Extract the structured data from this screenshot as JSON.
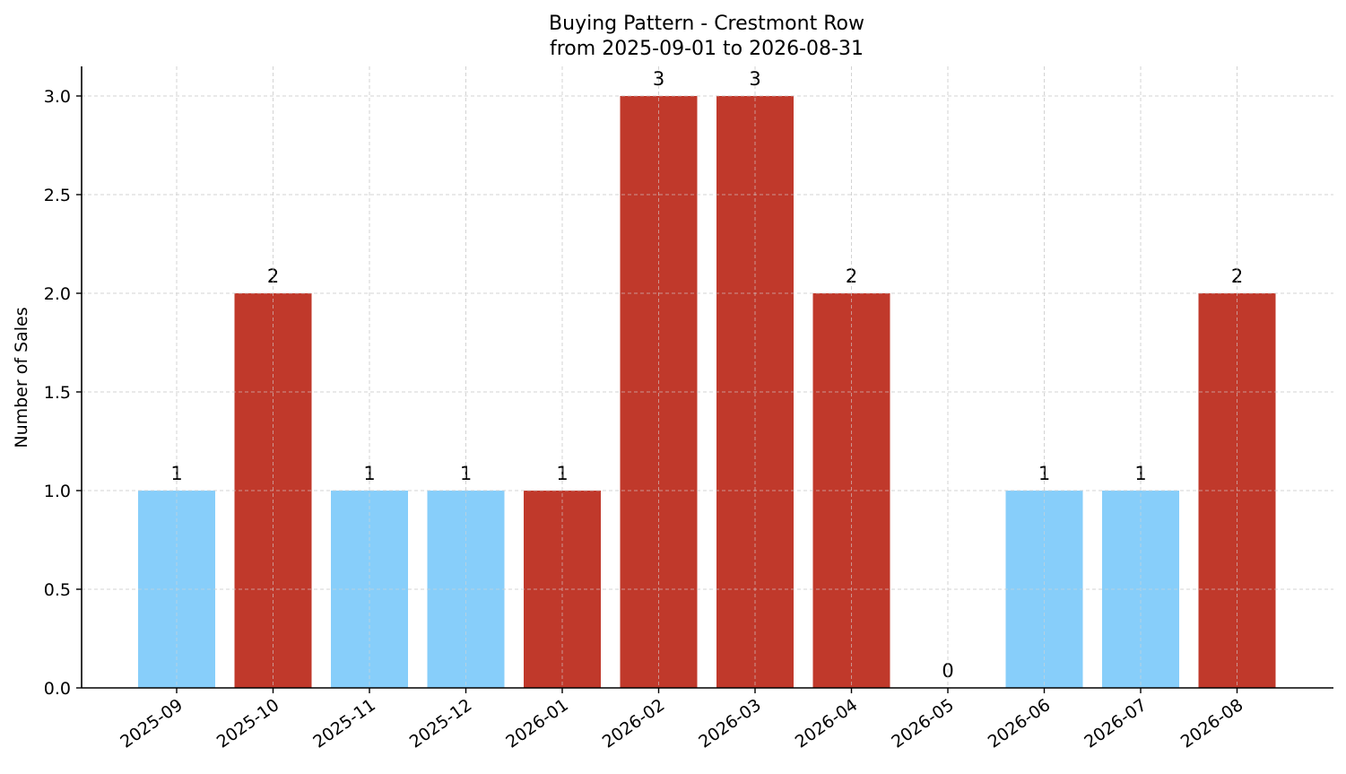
{
  "chart_data": {
    "type": "bar",
    "title": "Buying Pattern - Crestmont Row",
    "subtitle": "from 2025-09-01 to 2026-08-31",
    "xlabel": "",
    "ylabel": "Number of Sales",
    "categories": [
      "2025-09",
      "2025-10",
      "2025-11",
      "2025-12",
      "2026-01",
      "2026-02",
      "2026-03",
      "2026-04",
      "2026-05",
      "2026-06",
      "2026-07",
      "2026-08"
    ],
    "values": [
      1,
      2,
      1,
      1,
      1,
      3,
      3,
      2,
      0,
      1,
      1,
      2
    ],
    "bar_colors": [
      "#87cefa",
      "#c0392b",
      "#87cefa",
      "#87cefa",
      "#c0392b",
      "#c0392b",
      "#c0392b",
      "#c0392b",
      "#87cefa",
      "#87cefa",
      "#87cefa",
      "#c0392b"
    ],
    "data_labels": [
      "1",
      "2",
      "1",
      "1",
      "1",
      "3",
      "3",
      "2",
      "0",
      "1",
      "1",
      "2"
    ],
    "ylim": [
      0,
      3.15
    ],
    "yticks": [
      0.0,
      0.5,
      1.0,
      1.5,
      2.0,
      2.5,
      3.0
    ],
    "ytick_labels": [
      "0.0",
      "0.5",
      "1.0",
      "1.5",
      "2.0",
      "2.5",
      "3.0"
    ],
    "grid": true,
    "legend": "none"
  }
}
